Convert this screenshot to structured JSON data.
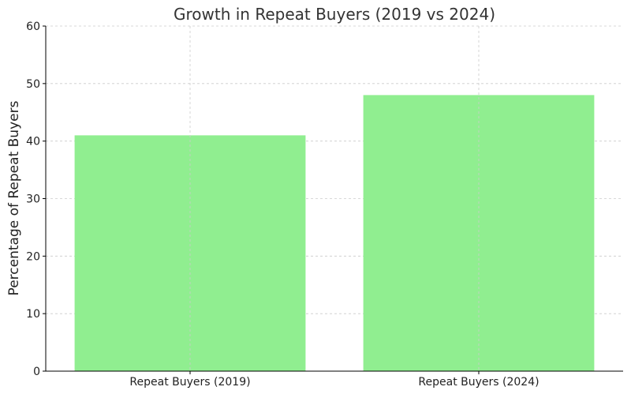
{
  "chart_data": {
    "type": "bar",
    "title": "Growth in Repeat Buyers (2019 vs 2024)",
    "xlabel": "",
    "ylabel": "Percentage of Repeat Buyers",
    "categories": [
      "Repeat Buyers (2019)",
      "Repeat Buyers (2024)"
    ],
    "values": [
      41,
      48
    ],
    "ylim": [
      0,
      60
    ],
    "yticks": [
      0,
      10,
      20,
      30,
      40,
      50,
      60
    ],
    "grid": true,
    "bar_color": "#90ee90",
    "grid_color": "#cccccc",
    "axis_color": "#000000",
    "text_color": "#333333"
  }
}
